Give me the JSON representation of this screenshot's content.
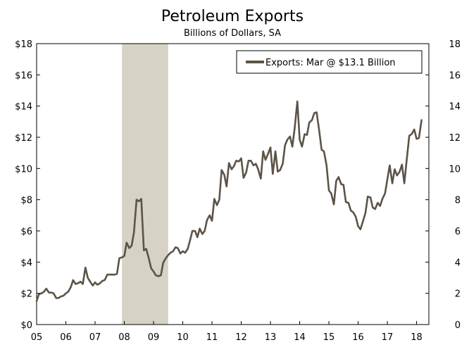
{
  "chart_data": {
    "type": "line",
    "title": "Petroleum Exports",
    "subtitle": "Billions of Dollars, SA",
    "xlabel": "",
    "ylabel": "",
    "x_range": [
      2005.0,
      2018.42
    ],
    "ylim": [
      0,
      18
    ],
    "y_ticks": [
      0,
      2,
      4,
      6,
      8,
      10,
      12,
      14,
      16,
      18
    ],
    "y_tick_labels": [
      "$0",
      "$2",
      "$4",
      "$6",
      "$8",
      "$10",
      "$12",
      "$14",
      "$16",
      "$18"
    ],
    "y_tick_labels_right": [
      "0",
      "2",
      "4",
      "6",
      "8",
      "10",
      "12",
      "14",
      "16",
      "18"
    ],
    "x_ticks": [
      2005,
      2006,
      2007,
      2008,
      2009,
      2010,
      2011,
      2012,
      2013,
      2014,
      2015,
      2016,
      2017,
      2018
    ],
    "x_tick_labels": [
      "05",
      "06",
      "07",
      "08",
      "09",
      "10",
      "11",
      "12",
      "13",
      "14",
      "15",
      "16",
      "17",
      "18"
    ],
    "recession": {
      "start": 2007.92,
      "end": 2009.5
    },
    "legend": {
      "position": "top-right",
      "label": "Exports: Mar @ $13.1 Billion"
    },
    "colors": {
      "line": "#5d5347",
      "recession": "#d6d2c5",
      "axis": "#000000"
    },
    "series": [
      {
        "name": "Exports",
        "points": [
          [
            2005.0,
            1.5
          ],
          [
            2005.08,
            1.95
          ],
          [
            2005.17,
            2.0
          ],
          [
            2005.25,
            2.1
          ],
          [
            2005.33,
            2.3
          ],
          [
            2005.42,
            2.05
          ],
          [
            2005.5,
            2.05
          ],
          [
            2005.58,
            2.0
          ],
          [
            2005.67,
            1.7
          ],
          [
            2005.75,
            1.7
          ],
          [
            2005.83,
            1.8
          ],
          [
            2005.92,
            1.85
          ],
          [
            2006.0,
            2.0
          ],
          [
            2006.08,
            2.1
          ],
          [
            2006.17,
            2.4
          ],
          [
            2006.25,
            2.85
          ],
          [
            2006.33,
            2.6
          ],
          [
            2006.42,
            2.65
          ],
          [
            2006.5,
            2.75
          ],
          [
            2006.58,
            2.6
          ],
          [
            2006.67,
            3.65
          ],
          [
            2006.75,
            3.0
          ],
          [
            2006.83,
            2.75
          ],
          [
            2006.92,
            2.5
          ],
          [
            2007.0,
            2.7
          ],
          [
            2007.08,
            2.55
          ],
          [
            2007.17,
            2.65
          ],
          [
            2007.25,
            2.8
          ],
          [
            2007.33,
            2.85
          ],
          [
            2007.42,
            3.2
          ],
          [
            2007.5,
            3.2
          ],
          [
            2007.58,
            3.2
          ],
          [
            2007.67,
            3.2
          ],
          [
            2007.75,
            3.25
          ],
          [
            2007.83,
            4.25
          ],
          [
            2007.92,
            4.3
          ],
          [
            2008.0,
            4.4
          ],
          [
            2008.08,
            5.25
          ],
          [
            2008.17,
            4.9
          ],
          [
            2008.25,
            5.05
          ],
          [
            2008.33,
            5.9
          ],
          [
            2008.42,
            8.0
          ],
          [
            2008.5,
            7.9
          ],
          [
            2008.58,
            8.05
          ],
          [
            2008.67,
            4.75
          ],
          [
            2008.75,
            4.85
          ],
          [
            2008.83,
            4.3
          ],
          [
            2008.92,
            3.6
          ],
          [
            2009.0,
            3.4
          ],
          [
            2009.08,
            3.15
          ],
          [
            2009.17,
            3.1
          ],
          [
            2009.25,
            3.15
          ],
          [
            2009.33,
            3.95
          ],
          [
            2009.42,
            4.25
          ],
          [
            2009.5,
            4.45
          ],
          [
            2009.58,
            4.6
          ],
          [
            2009.67,
            4.7
          ],
          [
            2009.75,
            4.95
          ],
          [
            2009.83,
            4.9
          ],
          [
            2009.92,
            4.55
          ],
          [
            2010.0,
            4.7
          ],
          [
            2010.08,
            4.6
          ],
          [
            2010.17,
            4.85
          ],
          [
            2010.25,
            5.4
          ],
          [
            2010.33,
            6.0
          ],
          [
            2010.42,
            6.0
          ],
          [
            2010.5,
            5.6
          ],
          [
            2010.58,
            6.15
          ],
          [
            2010.67,
            5.8
          ],
          [
            2010.75,
            6.0
          ],
          [
            2010.83,
            6.7
          ],
          [
            2010.92,
            7.0
          ],
          [
            2011.0,
            6.65
          ],
          [
            2011.08,
            8.05
          ],
          [
            2011.17,
            7.65
          ],
          [
            2011.25,
            8.0
          ],
          [
            2011.33,
            9.9
          ],
          [
            2011.42,
            9.6
          ],
          [
            2011.5,
            8.85
          ],
          [
            2011.58,
            10.35
          ],
          [
            2011.67,
            9.95
          ],
          [
            2011.75,
            10.15
          ],
          [
            2011.83,
            10.5
          ],
          [
            2011.92,
            10.45
          ],
          [
            2012.0,
            10.65
          ],
          [
            2012.08,
            9.4
          ],
          [
            2012.17,
            9.75
          ],
          [
            2012.25,
            10.5
          ],
          [
            2012.33,
            10.5
          ],
          [
            2012.42,
            10.2
          ],
          [
            2012.5,
            10.3
          ],
          [
            2012.58,
            9.95
          ],
          [
            2012.67,
            9.35
          ],
          [
            2012.75,
            11.1
          ],
          [
            2012.83,
            10.55
          ],
          [
            2012.92,
            10.95
          ],
          [
            2013.0,
            11.35
          ],
          [
            2013.08,
            9.65
          ],
          [
            2013.17,
            11.1
          ],
          [
            2013.25,
            9.8
          ],
          [
            2013.33,
            9.9
          ],
          [
            2013.42,
            10.3
          ],
          [
            2013.5,
            11.5
          ],
          [
            2013.58,
            11.85
          ],
          [
            2013.67,
            12.05
          ],
          [
            2013.75,
            11.4
          ],
          [
            2013.83,
            12.6
          ],
          [
            2013.92,
            14.3
          ],
          [
            2014.0,
            11.85
          ],
          [
            2014.08,
            11.4
          ],
          [
            2014.17,
            12.2
          ],
          [
            2014.25,
            12.15
          ],
          [
            2014.33,
            12.95
          ],
          [
            2014.42,
            13.1
          ],
          [
            2014.5,
            13.55
          ],
          [
            2014.58,
            13.6
          ],
          [
            2014.67,
            12.4
          ],
          [
            2014.75,
            11.2
          ],
          [
            2014.83,
            11.1
          ],
          [
            2014.92,
            10.2
          ],
          [
            2015.0,
            8.6
          ],
          [
            2015.08,
            8.4
          ],
          [
            2015.17,
            7.7
          ],
          [
            2015.25,
            9.2
          ],
          [
            2015.33,
            9.45
          ],
          [
            2015.42,
            9.0
          ],
          [
            2015.5,
            8.95
          ],
          [
            2015.58,
            7.85
          ],
          [
            2015.67,
            7.8
          ],
          [
            2015.75,
            7.3
          ],
          [
            2015.83,
            7.2
          ],
          [
            2015.92,
            6.9
          ],
          [
            2016.0,
            6.3
          ],
          [
            2016.08,
            6.1
          ],
          [
            2016.17,
            6.65
          ],
          [
            2016.25,
            7.15
          ],
          [
            2016.33,
            8.2
          ],
          [
            2016.42,
            8.15
          ],
          [
            2016.5,
            7.5
          ],
          [
            2016.58,
            7.4
          ],
          [
            2016.67,
            7.8
          ],
          [
            2016.75,
            7.6
          ],
          [
            2016.83,
            8.05
          ],
          [
            2016.92,
            8.4
          ],
          [
            2017.0,
            9.3
          ],
          [
            2017.08,
            10.2
          ],
          [
            2017.17,
            9.05
          ],
          [
            2017.25,
            9.95
          ],
          [
            2017.33,
            9.55
          ],
          [
            2017.42,
            9.8
          ],
          [
            2017.5,
            10.25
          ],
          [
            2017.58,
            9.05
          ],
          [
            2017.67,
            10.7
          ],
          [
            2017.75,
            12.1
          ],
          [
            2017.83,
            12.2
          ],
          [
            2017.92,
            12.5
          ],
          [
            2018.0,
            11.9
          ],
          [
            2018.08,
            11.95
          ],
          [
            2018.17,
            13.1
          ]
        ]
      }
    ]
  }
}
